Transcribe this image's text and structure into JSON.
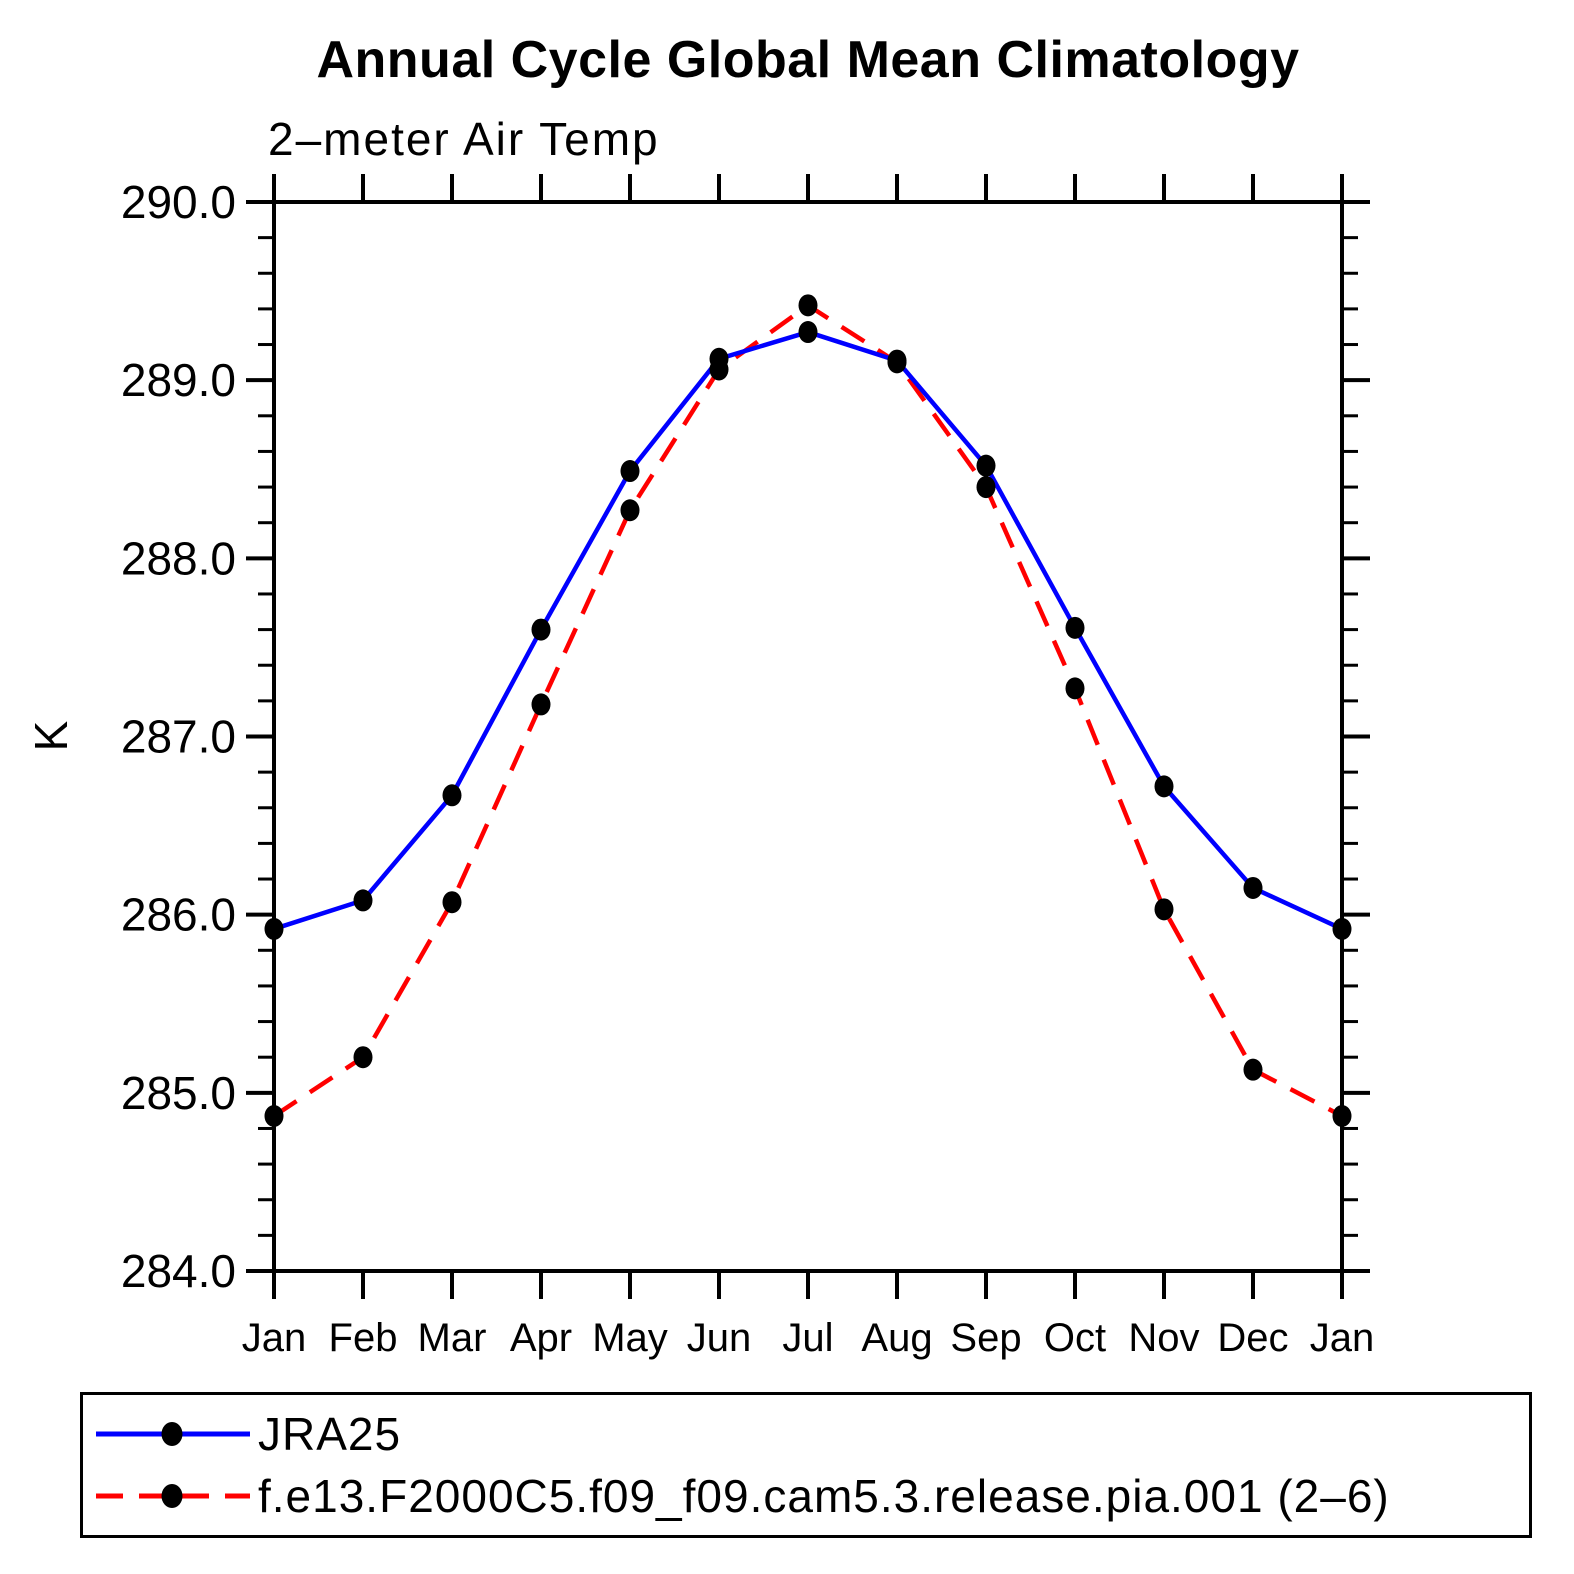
{
  "chart_data": {
    "type": "line",
    "title": "Annual Cycle Global Mean Climatology",
    "subtitle": "2–meter Air Temp",
    "ylabel": "K",
    "x_categories": [
      "Jan",
      "Feb",
      "Mar",
      "Apr",
      "May",
      "Jun",
      "Jul",
      "Aug",
      "Sep",
      "Oct",
      "Nov",
      "Dec",
      "Jan"
    ],
    "ylim": [
      284.0,
      290.0
    ],
    "ytick_values": [
      290.0,
      289.0,
      288.0,
      287.0,
      286.0,
      285.0,
      284.0
    ],
    "ytick_labels": [
      "290.0",
      "289.0",
      "288.0",
      "287.0",
      "286.0",
      "285.0",
      "284.0"
    ],
    "yminor_step": 0.2,
    "grid": false,
    "axis_color": "#000000",
    "marker_color": "#000000",
    "legend_position": "bottom",
    "series": [
      {
        "name": "JRA25",
        "color": "#0000ff",
        "line_style": "solid",
        "marker": "filled-circle",
        "values": [
          285.92,
          286.08,
          286.67,
          287.6,
          288.49,
          289.12,
          289.27,
          289.11,
          288.52,
          287.61,
          286.72,
          286.15,
          285.92
        ]
      },
      {
        "name": "f.e13.F2000C5.f09_f09.cam5.3.release.pia.001 (2–6)",
        "color": "#ff0000",
        "line_style": "dashed",
        "marker": "filled-circle",
        "values": [
          284.87,
          285.2,
          286.07,
          287.18,
          288.27,
          289.06,
          289.42,
          289.1,
          288.4,
          287.27,
          286.03,
          285.13,
          284.87
        ]
      }
    ]
  }
}
